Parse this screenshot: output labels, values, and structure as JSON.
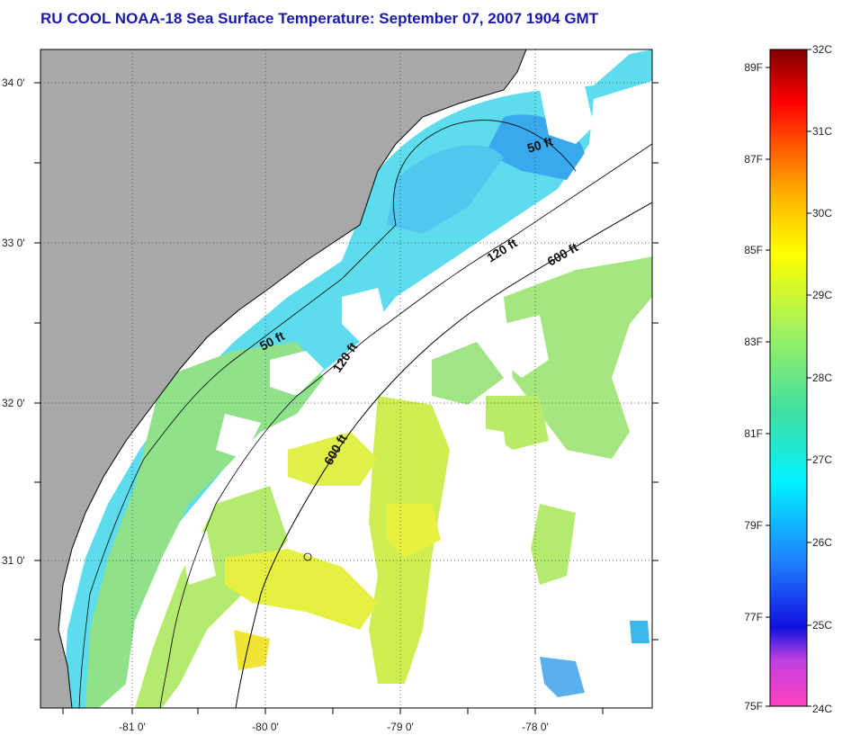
{
  "title": "RU COOL  NOAA-18  Sea Surface Temperature:  September 07, 2007 1904 GMT",
  "map": {
    "lon_ticks": [
      "-81 0'",
      "-80 0'",
      "-79 0'",
      "-78 0'"
    ],
    "lat_ticks": [
      "34 0'",
      "33 0'",
      "32 0'",
      "31 0'"
    ],
    "depth_labels": [
      "50 ft",
      "50 ft",
      "120 ft",
      "120 ft",
      "600 ft",
      "600 ft"
    ],
    "colors": {
      "land": "#a8a8a8",
      "cloud": "#ffffff",
      "water_cyan": "#5cdcec",
      "water_green": "#a6e680",
      "water_yellow": "#e8f040"
    }
  },
  "colorbar": {
    "fahrenheit_labels": [
      "89F",
      "87F",
      "85F",
      "83F",
      "81F",
      "79F",
      "77F",
      "75F"
    ],
    "celsius_labels": [
      "32C",
      "31C",
      "30C",
      "29C",
      "28C",
      "27C",
      "26C",
      "25C",
      "24C"
    ],
    "range_c": [
      24,
      32
    ],
    "range_f": [
      75,
      89.6
    ]
  }
}
